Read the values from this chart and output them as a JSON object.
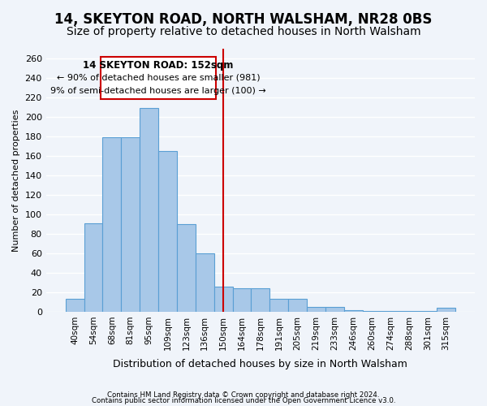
{
  "title": "14, SKEYTON ROAD, NORTH WALSHAM, NR28 0BS",
  "subtitle": "Size of property relative to detached houses in North Walsham",
  "xlabel": "Distribution of detached houses by size in North Walsham",
  "ylabel": "Number of detached properties",
  "bar_labels": [
    "40sqm",
    "54sqm",
    "68sqm",
    "81sqm",
    "95sqm",
    "109sqm",
    "123sqm",
    "136sqm",
    "150sqm",
    "164sqm",
    "178sqm",
    "191sqm",
    "205sqm",
    "219sqm",
    "233sqm",
    "246sqm",
    "260sqm",
    "274sqm",
    "288sqm",
    "301sqm",
    "315sqm"
  ],
  "bar_values": [
    13,
    91,
    179,
    179,
    209,
    165,
    90,
    60,
    26,
    24,
    24,
    13,
    13,
    5,
    5,
    2,
    1,
    1,
    1,
    1,
    4
  ],
  "bar_color": "#a8c8e8",
  "bar_edge_color": "#5a9fd4",
  "vline_x_index": 8,
  "vline_color": "#cc0000",
  "annotation_title": "14 SKEYTON ROAD: 152sqm",
  "annotation_line1": "← 90% of detached houses are smaller (981)",
  "annotation_line2": "9% of semi-detached houses are larger (100) →",
  "annotation_box_color": "#ffffff",
  "annotation_box_edge": "#cc0000",
  "ylim": [
    0,
    270
  ],
  "yticks": [
    0,
    20,
    40,
    60,
    80,
    100,
    120,
    140,
    160,
    180,
    200,
    220,
    240,
    260
  ],
  "footer1": "Contains HM Land Registry data © Crown copyright and database right 2024.",
  "footer2": "Contains public sector information licensed under the Open Government Licence v3.0.",
  "bg_color": "#f0f4fa",
  "grid_color": "#ffffff",
  "title_fontsize": 12,
  "subtitle_fontsize": 10
}
